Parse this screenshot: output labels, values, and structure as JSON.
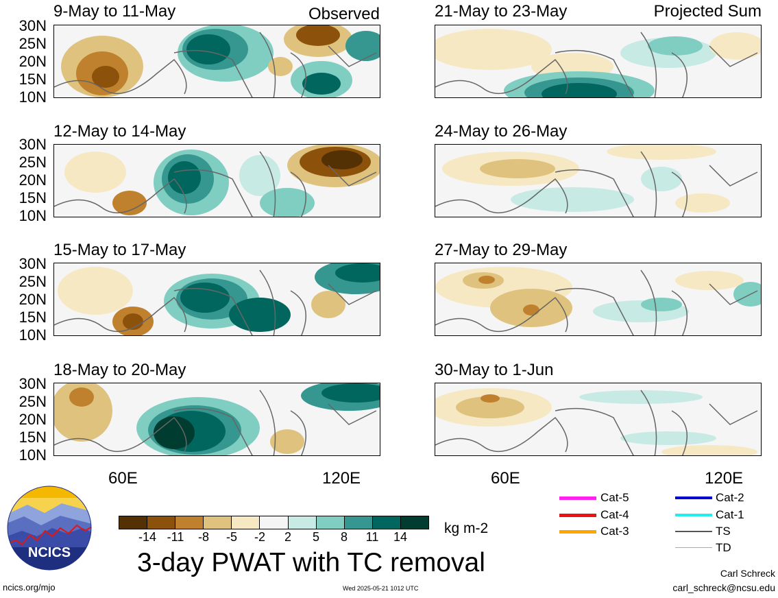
{
  "header": {
    "left_label": "Observed",
    "right_label": "Projected Sum"
  },
  "panels": {
    "observed": [
      {
        "title": "9-May to 11-May"
      },
      {
        "title": "12-May to 14-May"
      },
      {
        "title": "15-May to 17-May"
      },
      {
        "title": "18-May to 20-May"
      }
    ],
    "projected": [
      {
        "title": "21-May to 23-May"
      },
      {
        "title": "24-May to 26-May"
      },
      {
        "title": "27-May to 29-May"
      },
      {
        "title": "30-May to 1-Jun"
      }
    ]
  },
  "axes": {
    "y_ticks": [
      "30N",
      "25N",
      "20N",
      "15N",
      "10N"
    ],
    "x_ticks": [
      "60E",
      "120E"
    ]
  },
  "colorbar": {
    "labels": [
      "-14",
      "-11",
      "-8",
      "-5",
      "-2",
      "2",
      "5",
      "8",
      "11",
      "14"
    ],
    "colors": [
      "#543005",
      "#8c510a",
      "#bf812d",
      "#dfc27d",
      "#f6e8c3",
      "#f5f5f5",
      "#c7eae5",
      "#80cdc1",
      "#35978f",
      "#01665e",
      "#003c30"
    ],
    "unit": "kg m-2"
  },
  "legend": {
    "items": [
      {
        "label": "Cat-5",
        "color": "#ff22ee"
      },
      {
        "label": "Cat-4",
        "color": "#ee1111"
      },
      {
        "label": "Cat-3",
        "color": "#ffa500"
      },
      {
        "label": "Cat-2",
        "color": "#0000cc"
      },
      {
        "label": "Cat-1",
        "color": "#22eeee"
      },
      {
        "label": "TS",
        "color": "#555555"
      },
      {
        "label": "TD",
        "color": "#aaaaaa"
      }
    ]
  },
  "footer": {
    "title": "3-day PWAT with TC removal",
    "logo_text": "NCICS",
    "url": "ncics.org/mjo",
    "timestamp": "Wed 2025-05-21 1012 UTC",
    "author": "Carl Schreck",
    "email": "carl_schreck@ncsu.edu"
  }
}
